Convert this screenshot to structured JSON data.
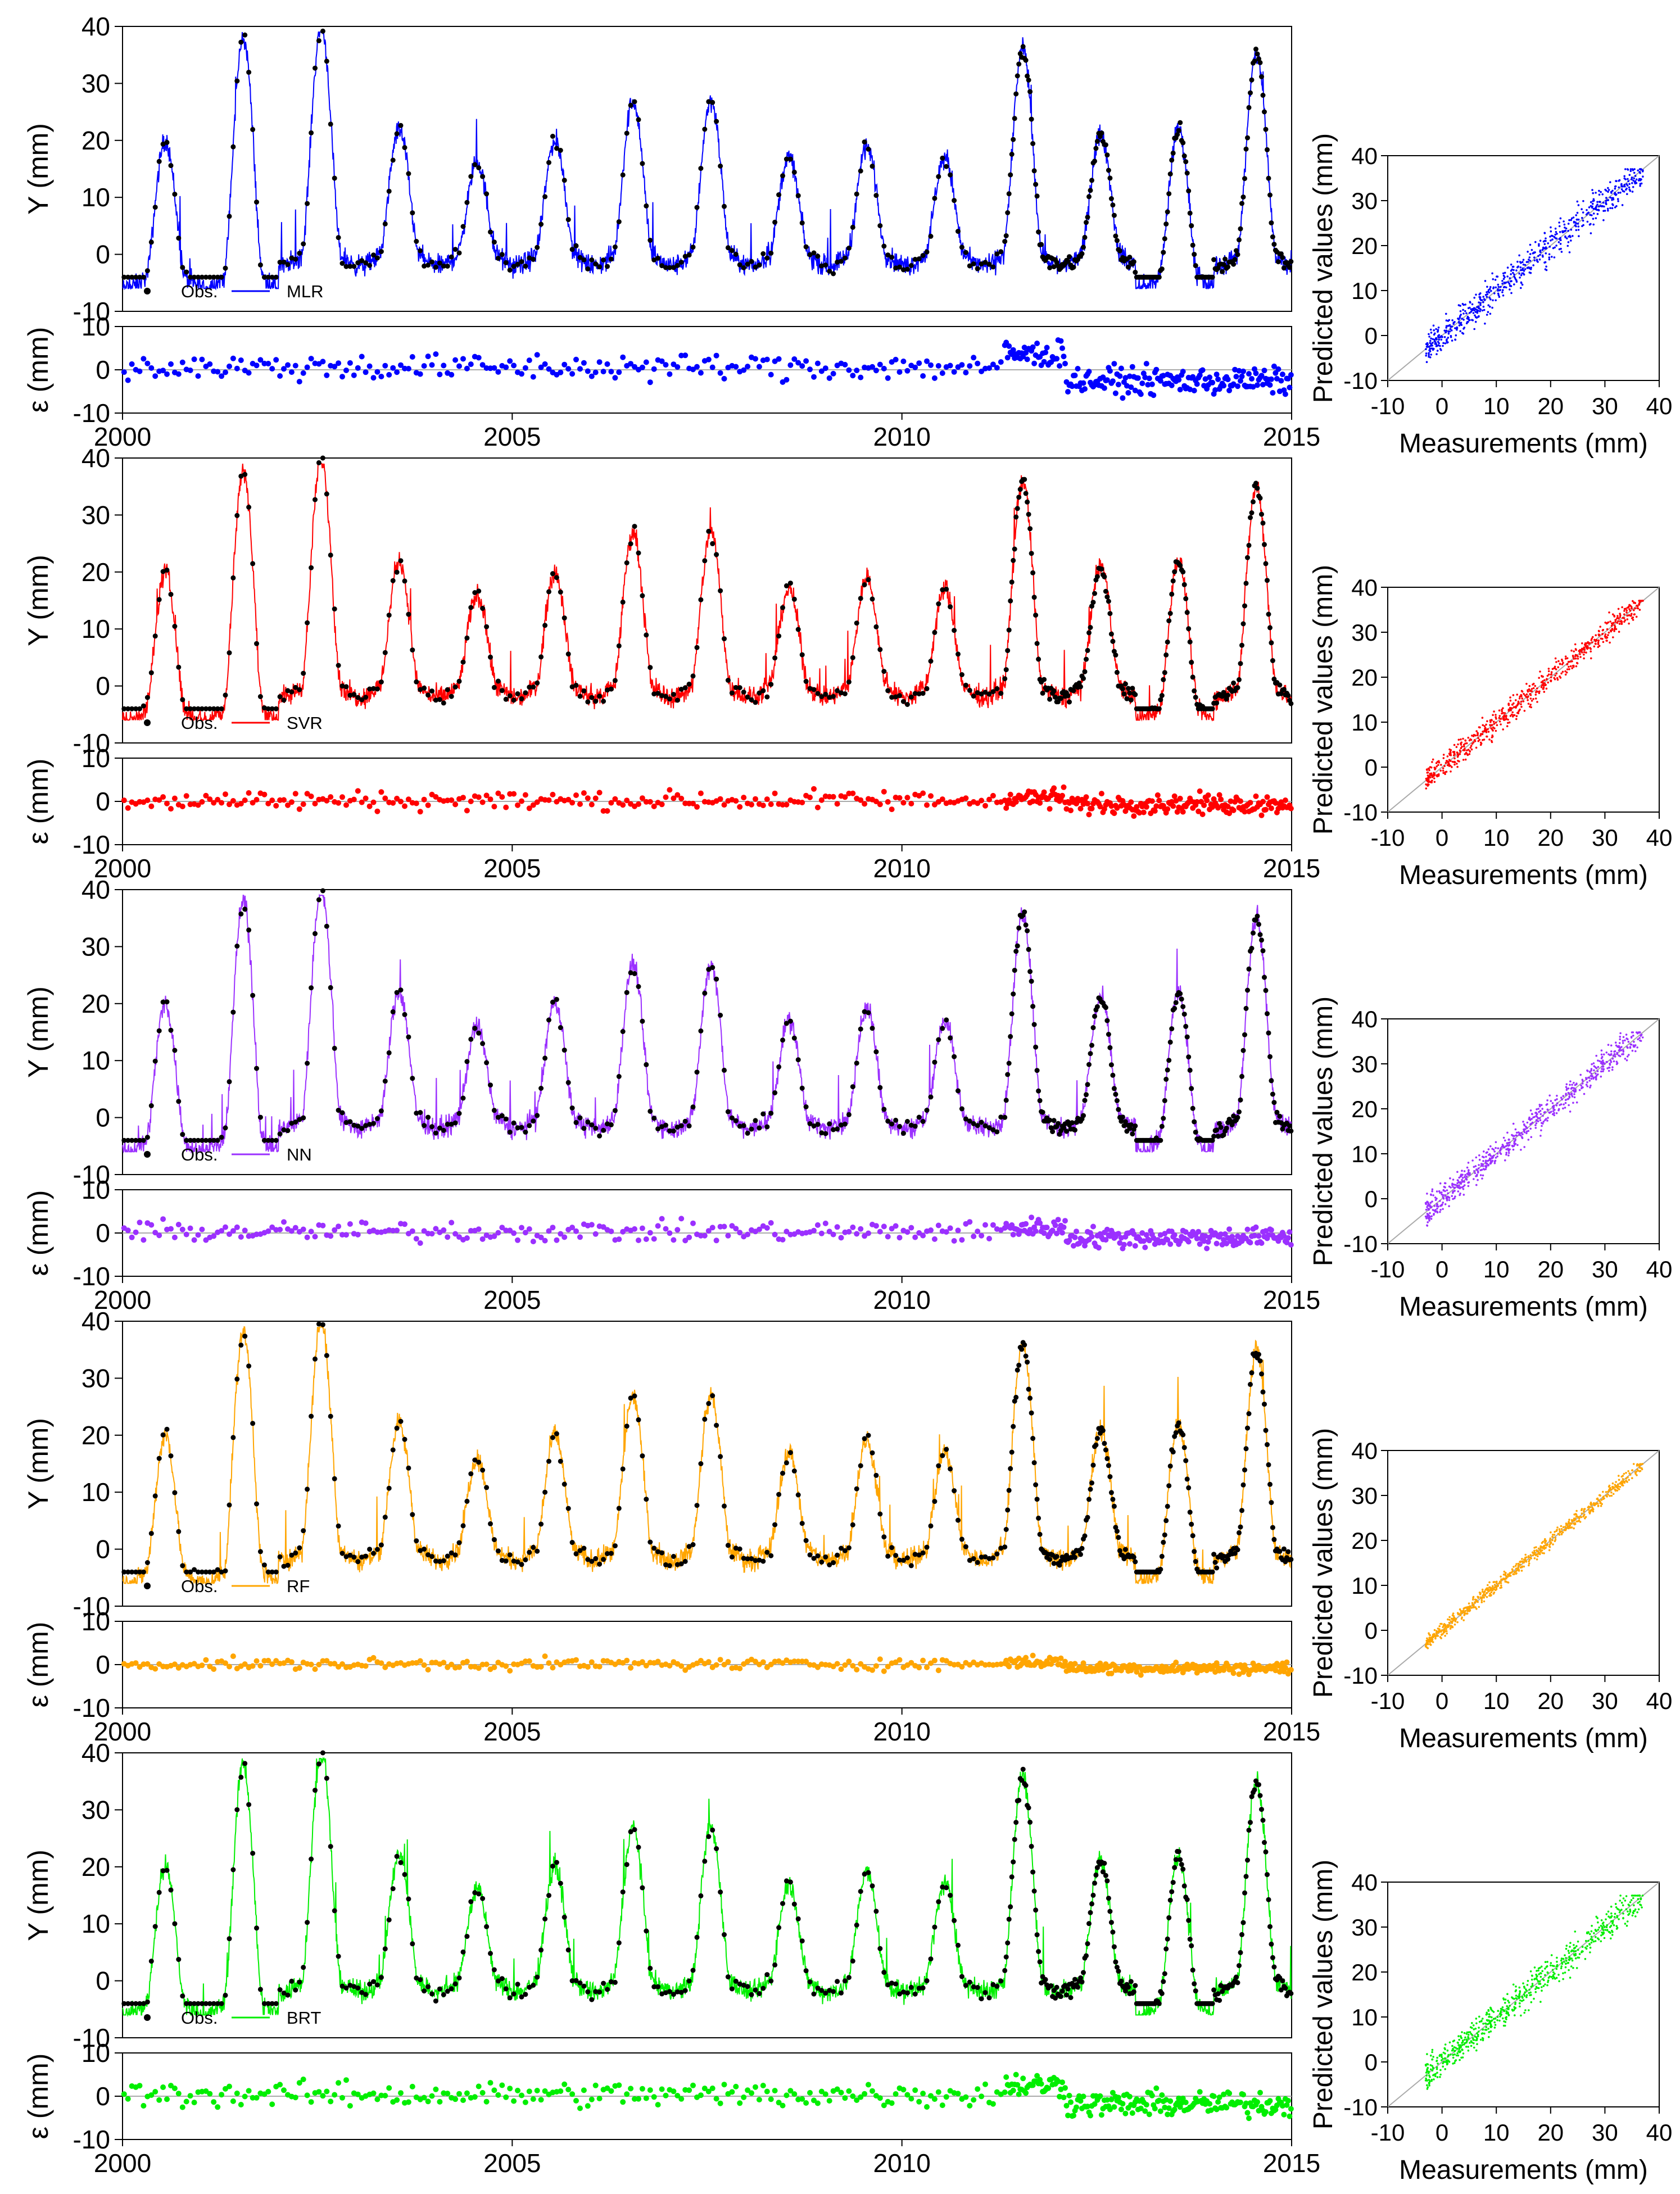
{
  "chart_data": [
    {
      "type": "line",
      "model": "MLR",
      "color": "#0000ff",
      "legend": [
        "Obs.",
        "MLR"
      ],
      "ts": {
        "ylabel": "Y (mm)",
        "ylim": [
          -10,
          40
        ],
        "yticks": [
          "-10",
          "0",
          "10",
          "20",
          "30",
          "40"
        ],
        "xlim": [
          2000,
          2015
        ],
        "xticks": [
          "2000",
          "2005",
          "2010",
          "2015"
        ]
      },
      "resid": {
        "ylabel": "ε (mm)",
        "ylim": [
          -10,
          10
        ],
        "yticks": [
          "-10",
          "0",
          "10"
        ],
        "spread": 2.6,
        "bias": [
          0.6,
          3.6,
          -2.6
        ]
      },
      "scatter": {
        "type": "scatter",
        "xlabel": "Measurements (mm)",
        "ylabel": "Predicted values (mm)",
        "xlim": [
          -10,
          40
        ],
        "ylim": [
          -10,
          40
        ],
        "xticks": [
          "-10",
          "0",
          "10",
          "20",
          "30",
          "40"
        ],
        "yticks": [
          "-10",
          "0",
          "10",
          "20",
          "30",
          "40"
        ],
        "noise": 3.2
      }
    },
    {
      "type": "line",
      "model": "SVR",
      "color": "#ff0000",
      "legend": [
        "Obs.",
        "SVR"
      ],
      "ts": {
        "ylabel": "Y (mm)",
        "ylim": [
          -10,
          40
        ],
        "yticks": [
          "-10",
          "0",
          "10",
          "20",
          "30",
          "40"
        ],
        "xlim": [
          2000,
          2015
        ],
        "xticks": [
          "2000",
          "2005",
          "2010",
          "2015"
        ]
      },
      "resid": {
        "ylabel": "ε (mm)",
        "ylim": [
          -10,
          10
        ],
        "yticks": [
          "-10",
          "0",
          "10"
        ],
        "spread": 1.9,
        "bias": [
          0.2,
          0.8,
          -0.6
        ]
      },
      "scatter": {
        "type": "scatter",
        "xlabel": "Measurements (mm)",
        "ylabel": "Predicted values (mm)",
        "xlim": [
          -10,
          40
        ],
        "ylim": [
          -10,
          40
        ],
        "xticks": [
          "-10",
          "0",
          "10",
          "20",
          "30",
          "40"
        ],
        "yticks": [
          "-10",
          "0",
          "10",
          "20",
          "30",
          "40"
        ],
        "noise": 2.3
      }
    },
    {
      "type": "line",
      "model": "NN",
      "color": "#9b30ff",
      "legend": [
        "Obs.",
        "NN"
      ],
      "ts": {
        "ylabel": "Y (mm)",
        "ylim": [
          -10,
          40
        ],
        "yticks": [
          "-10",
          "0",
          "10",
          "20",
          "30",
          "40"
        ],
        "xlim": [
          2000,
          2015
        ],
        "xticks": [
          "2000",
          "2005",
          "2010",
          "2015"
        ]
      },
      "resid": {
        "ylabel": "ε (mm)",
        "ylim": [
          -10,
          10
        ],
        "yticks": [
          "-10",
          "0",
          "10"
        ],
        "spread": 2.0,
        "bias": [
          0.3,
          1.2,
          -1.0
        ]
      },
      "scatter": {
        "type": "scatter",
        "xlabel": "Measurements (mm)",
        "ylabel": "Predicted values (mm)",
        "xlim": [
          -10,
          40
        ],
        "ylim": [
          -10,
          40
        ],
        "xticks": [
          "-10",
          "0",
          "10",
          "20",
          "30",
          "40"
        ],
        "yticks": [
          "-10",
          "0",
          "10",
          "20",
          "30",
          "40"
        ],
        "noise": 2.6
      }
    },
    {
      "type": "line",
      "model": "RF",
      "color": "#ffa500",
      "legend": [
        "Obs.",
        "RF"
      ],
      "ts": {
        "ylabel": "Y (mm)",
        "ylim": [
          -10,
          40
        ],
        "yticks": [
          "-10",
          "0",
          "10",
          "20",
          "30",
          "40"
        ],
        "xlim": [
          2000,
          2015
        ],
        "xticks": [
          "2000",
          "2005",
          "2010",
          "2015"
        ]
      },
      "resid": {
        "ylabel": "ε (mm)",
        "ylim": [
          -10,
          10
        ],
        "yticks": [
          "-10",
          "0",
          "10"
        ],
        "spread": 1.1,
        "bias": [
          0.1,
          0.6,
          -0.8
        ]
      },
      "scatter": {
        "type": "scatter",
        "xlabel": "Measurements (mm)",
        "ylabel": "Predicted values (mm)",
        "xlim": [
          -10,
          40
        ],
        "ylim": [
          -10,
          40
        ],
        "xticks": [
          "-10",
          "0",
          "10",
          "20",
          "30",
          "40"
        ],
        "yticks": [
          "-10",
          "0",
          "10",
          "20",
          "30",
          "40"
        ],
        "noise": 1.3
      }
    },
    {
      "type": "line",
      "model": "BRT",
      "color": "#00ee00",
      "legend": [
        "Obs.",
        "BRT"
      ],
      "ts": {
        "ylabel": "Y (mm)",
        "ylim": [
          -10,
          40
        ],
        "yticks": [
          "-10",
          "0",
          "10",
          "20",
          "30",
          "40"
        ],
        "xlim": [
          2000,
          2015
        ],
        "xticks": [
          "2000",
          "2005",
          "2010",
          "2015"
        ]
      },
      "resid": {
        "ylabel": "ε (mm)",
        "ylim": [
          -10,
          10
        ],
        "yticks": [
          "-10",
          "0",
          "10"
        ],
        "spread": 2.5,
        "bias": [
          0.4,
          2.6,
          -1.8
        ]
      },
      "scatter": {
        "type": "scatter",
        "xlabel": "Measurements (mm)",
        "ylabel": "Predicted values (mm)",
        "xlim": [
          -10,
          40
        ],
        "ylim": [
          -10,
          40
        ],
        "xticks": [
          "-10",
          "0",
          "10",
          "20",
          "30",
          "40"
        ],
        "yticks": [
          "-10",
          "0",
          "10",
          "20",
          "30",
          "40"
        ],
        "noise": 3.0
      }
    }
  ],
  "seasonal_peaks": [
    {
      "year": 2000.35,
      "peak": 20
    },
    {
      "year": 2001.55,
      "peak": 38
    },
    {
      "year": 2002.6,
      "peak": 40
    },
    {
      "year": 2003.6,
      "peak": 22
    },
    {
      "year": 2004.55,
      "peak": 16
    },
    {
      "year": 2005.55,
      "peak": 20
    },
    {
      "year": 2006.5,
      "peak": 27
    },
    {
      "year": 2007.55,
      "peak": 27
    },
    {
      "year": 2008.6,
      "peak": 17
    },
    {
      "year": 2009.55,
      "peak": 19
    },
    {
      "year": 2010.55,
      "peak": 17
    },
    {
      "year": 2011.55,
      "peak": 36
    },
    {
      "year": 2012.45,
      "peak": 21
    },
    {
      "year": 2013.45,
      "peak": 22
    },
    {
      "year": 2014.55,
      "peak": 35
    }
  ]
}
